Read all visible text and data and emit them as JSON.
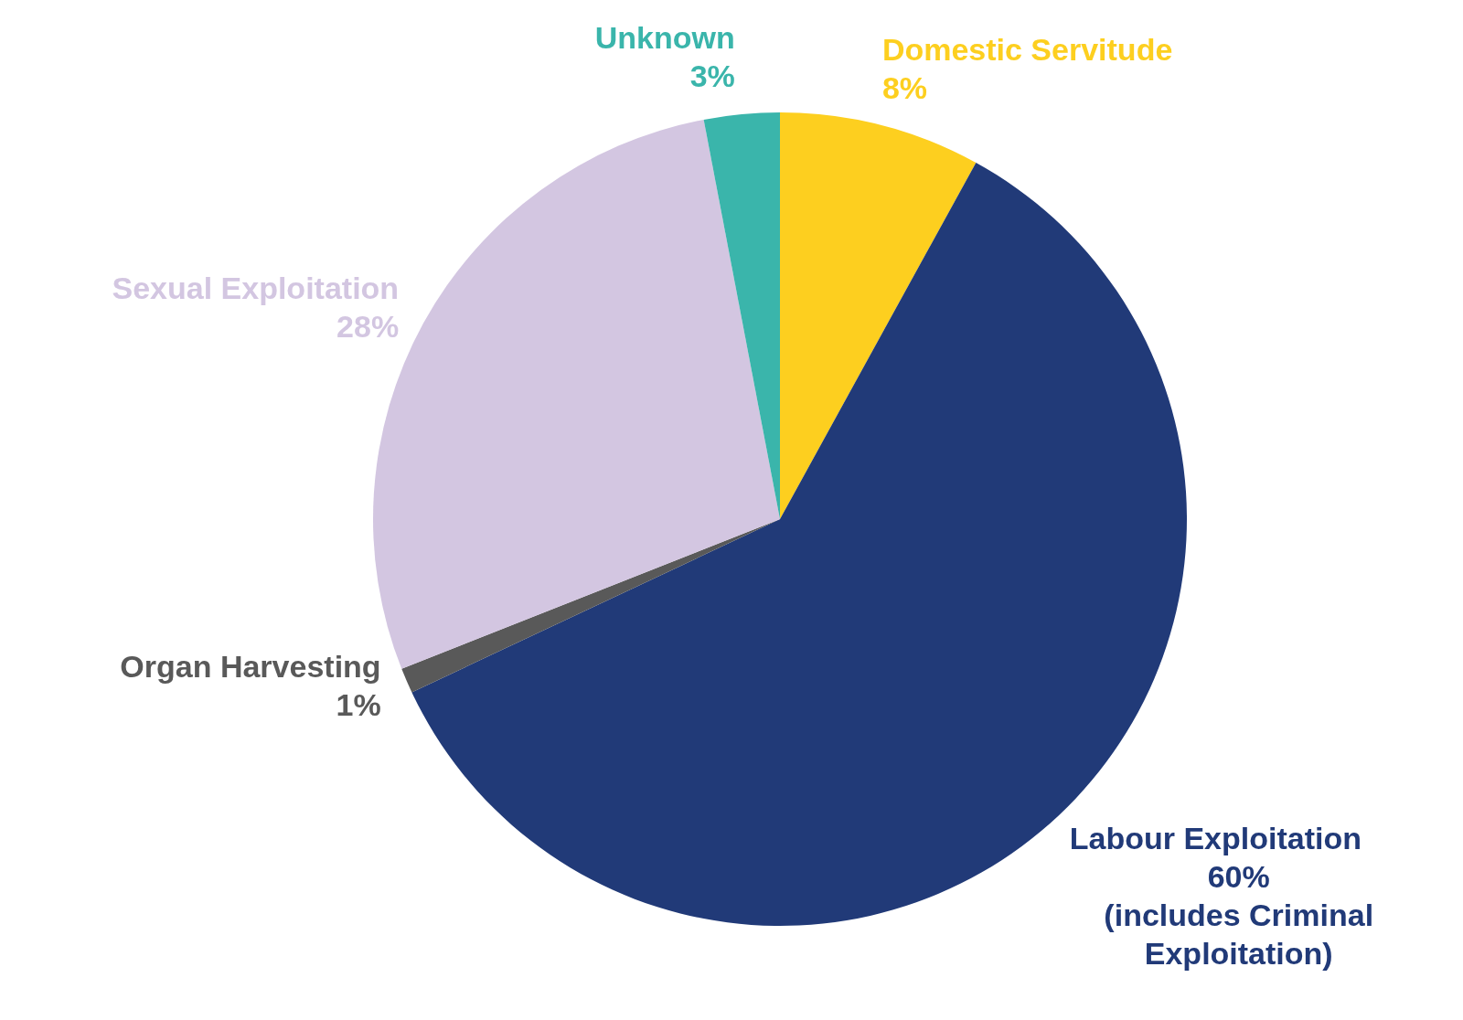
{
  "chart_data": {
    "type": "pie",
    "categories": [
      "Domestic Servitude",
      "Labour Exploitation",
      "Organ Harvesting",
      "Sexual Exploitation",
      "Unknown"
    ],
    "values": [
      8,
      60,
      1,
      28,
      3
    ],
    "value_labels": [
      "8%",
      "60%",
      "1%",
      "28%",
      "3%"
    ],
    "colors": [
      "#fdcf1f",
      "#213a78",
      "#595959",
      "#d3c6e1",
      "#3ab5ab"
    ],
    "annotations": [
      "(includes Criminal Exploitation)"
    ],
    "legend": false
  }
}
